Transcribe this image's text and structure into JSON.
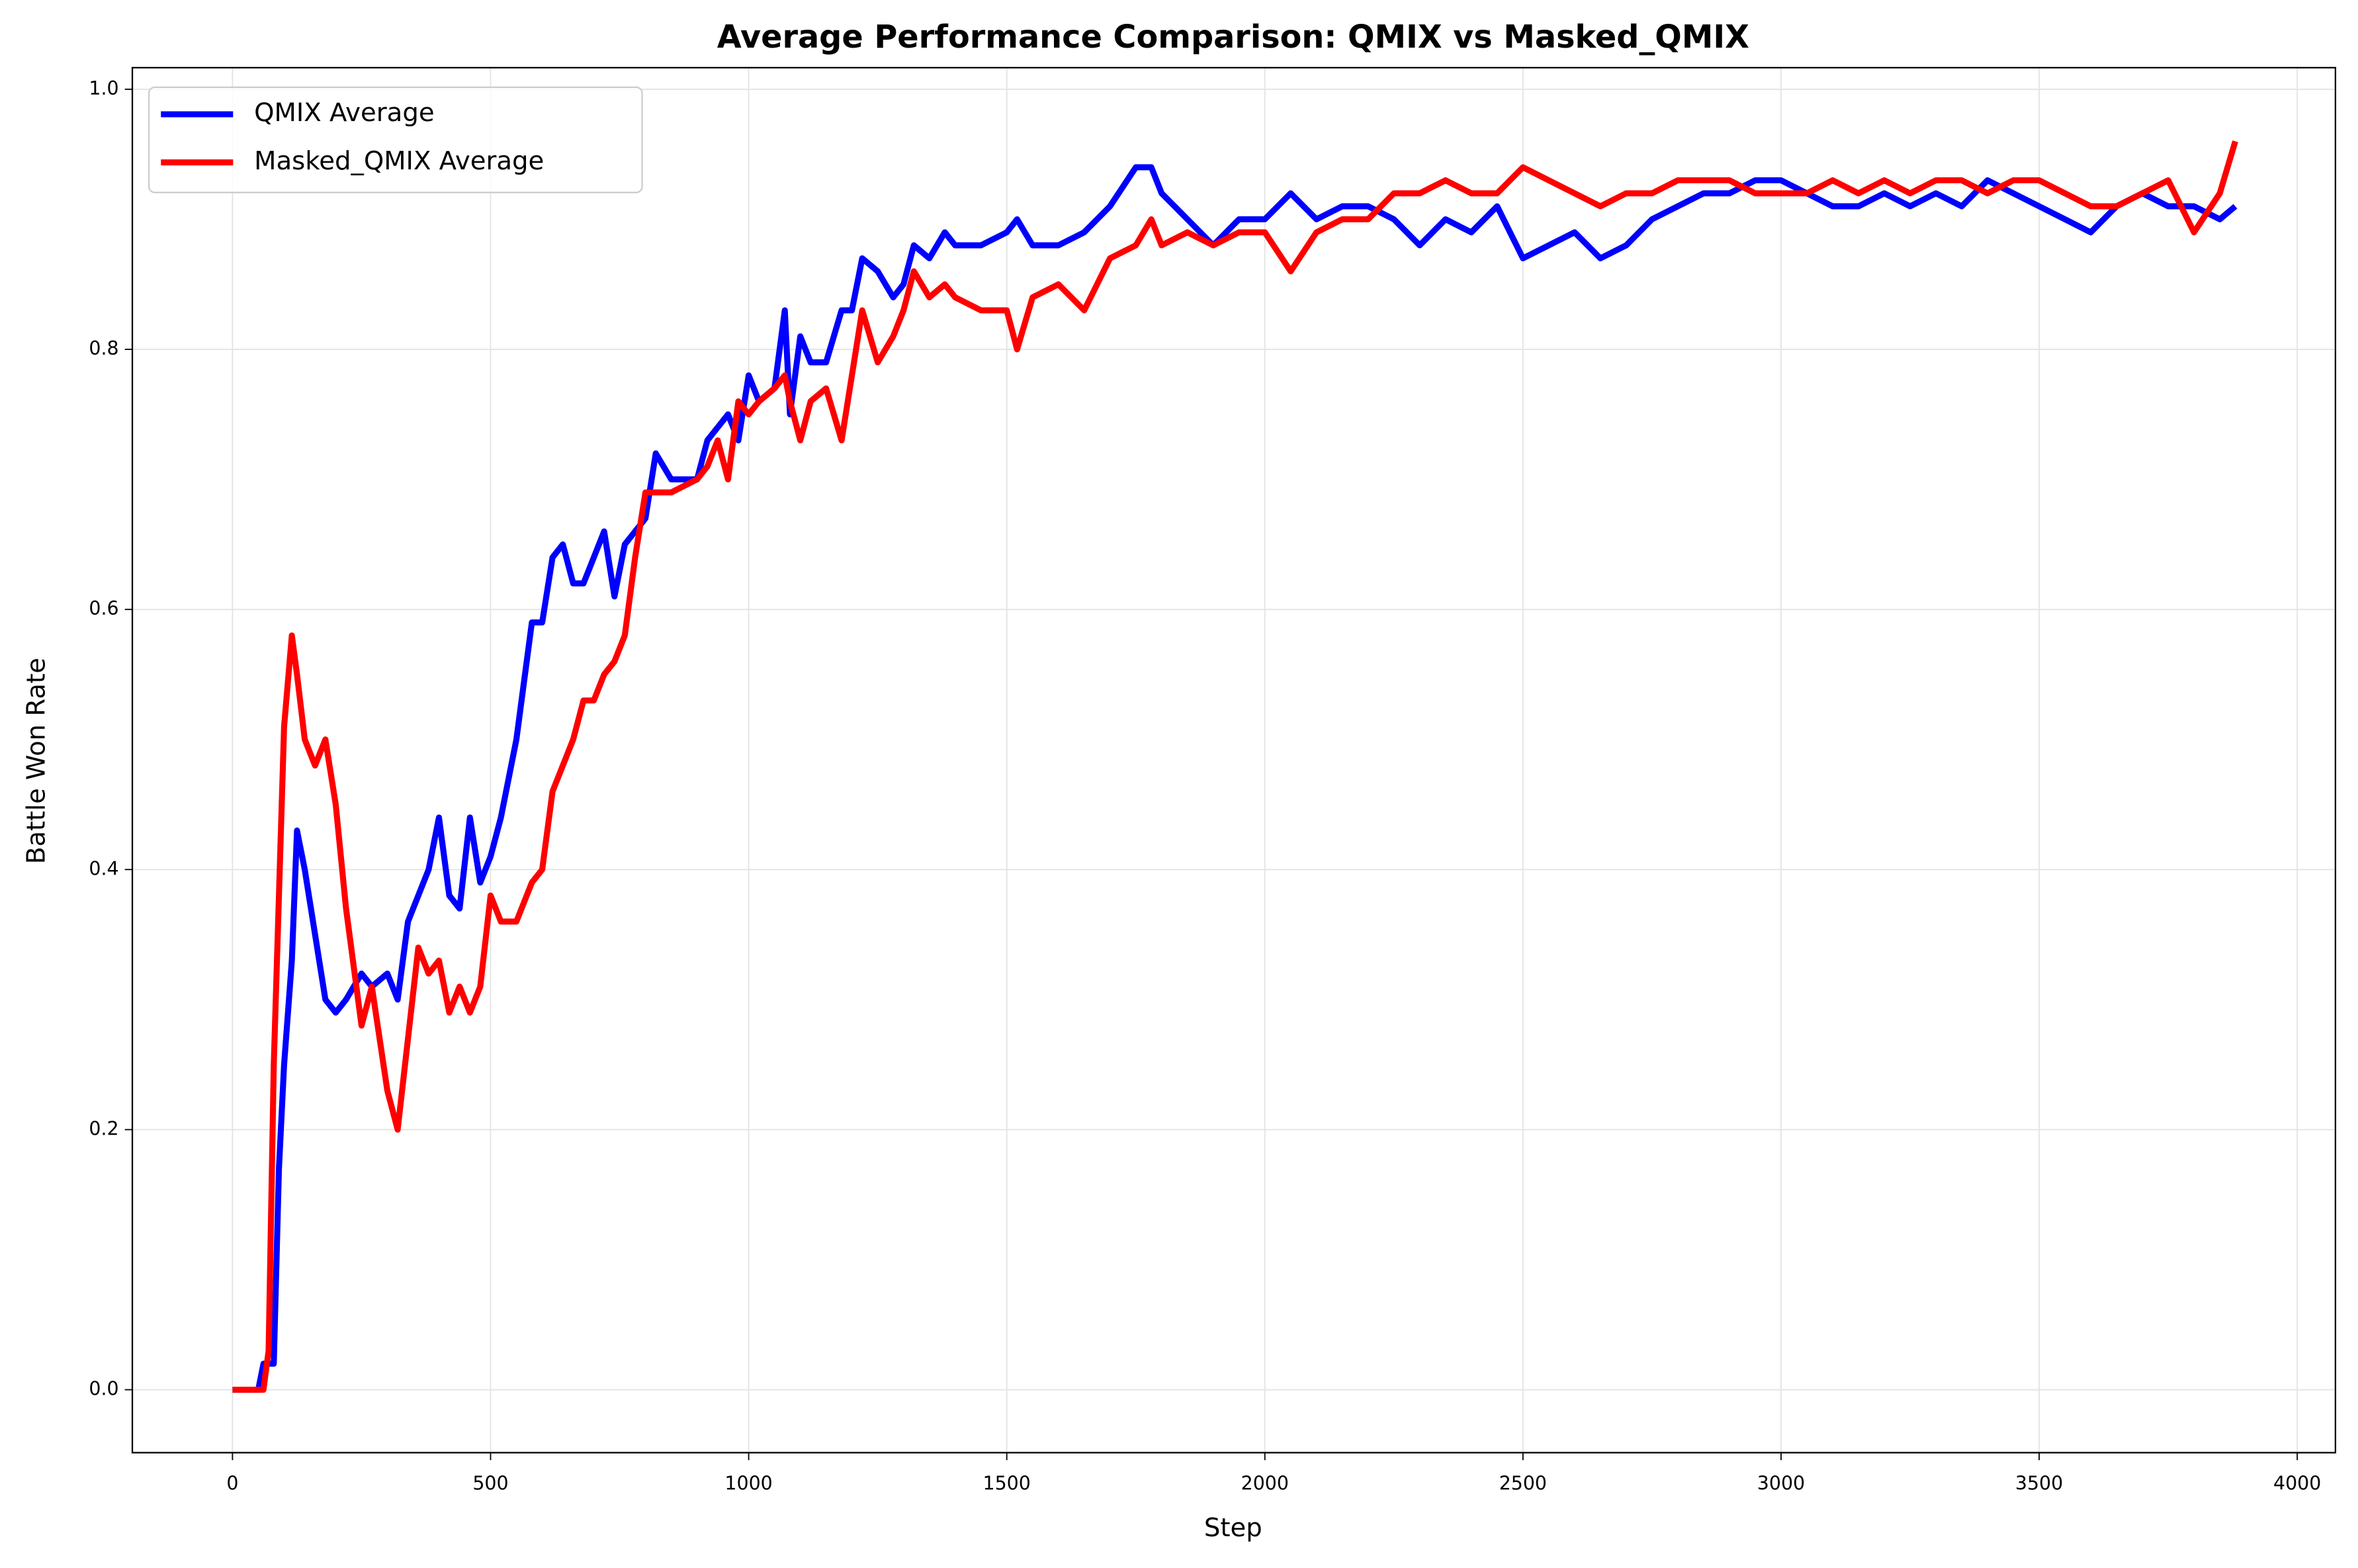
{
  "chart_data": {
    "type": "line",
    "title": "Average Performance Comparison: QMIX vs Masked_QMIX",
    "x_label": "Step",
    "y_label": "Battle Won Rate",
    "x": [
      0,
      50,
      60,
      70,
      80,
      90,
      100,
      115,
      125,
      140,
      160,
      180,
      200,
      220,
      250,
      270,
      300,
      320,
      340,
      360,
      380,
      400,
      420,
      440,
      460,
      480,
      500,
      520,
      550,
      580,
      600,
      620,
      640,
      660,
      680,
      700,
      720,
      740,
      760,
      780,
      800,
      820,
      850,
      900,
      920,
      940,
      960,
      980,
      1000,
      1020,
      1050,
      1070,
      1080,
      1100,
      1120,
      1150,
      1180,
      1200,
      1220,
      1250,
      1280,
      1300,
      1320,
      1350,
      1380,
      1400,
      1450,
      1500,
      1520,
      1550,
      1600,
      1650,
      1700,
      1750,
      1780,
      1800,
      1850,
      1900,
      1950,
      2000,
      2050,
      2100,
      2150,
      2200,
      2250,
      2300,
      2350,
      2400,
      2450,
      2500,
      2550,
      2600,
      2650,
      2700,
      2750,
      2800,
      2850,
      2900,
      2950,
      3000,
      3050,
      3100,
      3150,
      3200,
      3250,
      3300,
      3350,
      3400,
      3450,
      3500,
      3550,
      3600,
      3650,
      3700,
      3750,
      3800,
      3850,
      3880
    ],
    "series": [
      {
        "name": "QMIX Average",
        "color": "#0000ff",
        "values": [
          0,
          0,
          0.02,
          0.02,
          0.02,
          0.17,
          0.25,
          0.33,
          0.43,
          0.4,
          0.35,
          0.3,
          0.29,
          0.3,
          0.32,
          0.31,
          0.32,
          0.3,
          0.36,
          0.38,
          0.4,
          0.44,
          0.38,
          0.37,
          0.44,
          0.39,
          0.41,
          0.44,
          0.5,
          0.59,
          0.59,
          0.64,
          0.65,
          0.62,
          0.62,
          0.64,
          0.66,
          0.61,
          0.65,
          0.66,
          0.67,
          0.72,
          0.7,
          0.7,
          0.73,
          0.74,
          0.75,
          0.73,
          0.78,
          0.76,
          0.77,
          0.83,
          0.75,
          0.81,
          0.79,
          0.79,
          0.83,
          0.83,
          0.87,
          0.86,
          0.84,
          0.85,
          0.88,
          0.87,
          0.89,
          0.88,
          0.88,
          0.89,
          0.9,
          0.88,
          0.88,
          0.89,
          0.91,
          0.94,
          0.94,
          0.92,
          0.9,
          0.88,
          0.9,
          0.9,
          0.92,
          0.9,
          0.91,
          0.91,
          0.9,
          0.88,
          0.9,
          0.89,
          0.91,
          0.87,
          0.88,
          0.89,
          0.87,
          0.88,
          0.9,
          0.91,
          0.92,
          0.92,
          0.93,
          0.93,
          0.92,
          0.91,
          0.91,
          0.92,
          0.91,
          0.92,
          0.91,
          0.93,
          0.92,
          0.91,
          0.9,
          0.89,
          0.91,
          0.92,
          0.91,
          0.91,
          0.9,
          0.91
        ]
      },
      {
        "name": "Masked_QMIX Average",
        "color": "#ff0000",
        "values": [
          0,
          0,
          0,
          0.03,
          0.25,
          0.38,
          0.51,
          0.58,
          0.55,
          0.5,
          0.48,
          0.5,
          0.45,
          0.37,
          0.28,
          0.31,
          0.23,
          0.2,
          0.27,
          0.34,
          0.32,
          0.33,
          0.29,
          0.31,
          0.29,
          0.31,
          0.38,
          0.36,
          0.36,
          0.39,
          0.4,
          0.46,
          0.48,
          0.5,
          0.53,
          0.53,
          0.55,
          0.56,
          0.58,
          0.64,
          0.69,
          0.69,
          0.69,
          0.7,
          0.71,
          0.73,
          0.7,
          0.76,
          0.75,
          0.76,
          0.77,
          0.78,
          0.76,
          0.73,
          0.76,
          0.77,
          0.73,
          0.78,
          0.83,
          0.79,
          0.81,
          0.83,
          0.86,
          0.84,
          0.85,
          0.84,
          0.83,
          0.83,
          0.8,
          0.84,
          0.85,
          0.83,
          0.87,
          0.88,
          0.9,
          0.88,
          0.89,
          0.88,
          0.89,
          0.89,
          0.86,
          0.89,
          0.9,
          0.9,
          0.92,
          0.92,
          0.93,
          0.92,
          0.92,
          0.94,
          0.93,
          0.92,
          0.91,
          0.92,
          0.92,
          0.93,
          0.93,
          0.93,
          0.92,
          0.92,
          0.92,
          0.93,
          0.92,
          0.93,
          0.92,
          0.93,
          0.93,
          0.92,
          0.93,
          0.93,
          0.92,
          0.91,
          0.91,
          0.92,
          0.93,
          0.89,
          0.92,
          0.96
        ]
      }
    ],
    "xlim": [
      -194,
      4074
    ],
    "ylim": [
      -0.0484,
      1.0166
    ],
    "xticks": [
      0,
      500,
      1000,
      1500,
      2000,
      2500,
      3000,
      3500,
      4000
    ],
    "yticks": [
      {
        "value": 0,
        "label": "0.0"
      },
      {
        "value": 0.2,
        "label": "0.2"
      },
      {
        "value": 0.4,
        "label": "0.4"
      },
      {
        "value": 0.6,
        "label": "0.6"
      },
      {
        "value": 0.8,
        "label": "0.8"
      },
      {
        "value": 1.0,
        "label": "1.0"
      }
    ],
    "grid": true,
    "legend": "upper left"
  }
}
